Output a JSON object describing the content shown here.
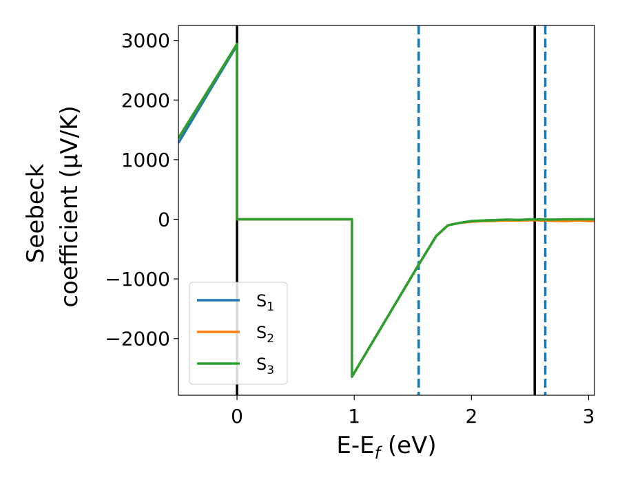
{
  "chart_data": {
    "type": "line",
    "title": "",
    "xlabel": {
      "main": "E-E",
      "sub": "f",
      "unit": " (eV)"
    },
    "ylabel": {
      "line1": "Seebeck",
      "line2": "coefficient  (μV/K)"
    },
    "xlim": [
      -0.5,
      3.05
    ],
    "ylim": [
      -2950,
      3250
    ],
    "xticks": [
      0,
      1,
      2,
      3
    ],
    "xtick_labels": [
      "0",
      "1",
      "2",
      "3"
    ],
    "yticks": [
      3000,
      2000,
      1000,
      0,
      -1000,
      -2000
    ],
    "ytick_labels": [
      "3000",
      "2000",
      "1000",
      "0",
      "−1000",
      "−2000"
    ],
    "grid": false,
    "legend_position": "lower-left",
    "vlines": [
      {
        "x": 0.0,
        "style": "solid",
        "color": "#000000"
      },
      {
        "x": 2.54,
        "style": "solid",
        "color": "#000000"
      },
      {
        "x": 1.55,
        "style": "dashed",
        "color": "#1f77b4"
      },
      {
        "x": 2.63,
        "style": "dashed",
        "color": "#1f77b4"
      }
    ],
    "series": [
      {
        "name": "S",
        "sub": "1",
        "color": "#1f77b4",
        "x": [
          -0.5,
          0.0,
          0.0,
          0.98,
          0.98,
          1.55,
          1.7,
          1.8,
          1.9,
          2.0,
          2.1,
          2.2,
          2.3,
          2.4,
          2.5,
          2.6,
          2.7,
          2.8,
          2.9,
          3.05
        ],
        "y": [
          1280,
          2920,
          0,
          0,
          -2640,
          -760,
          -280,
          -100,
          -60,
          -30,
          -20,
          -15,
          -10,
          -10,
          -5,
          -5,
          -10,
          -10,
          0,
          0
        ]
      },
      {
        "name": "S",
        "sub": "2",
        "color": "#ff7f0e",
        "x": [
          -0.5,
          0.0,
          0.0,
          0.98,
          0.98,
          1.55,
          1.7,
          1.8,
          1.9,
          2.0,
          2.1,
          2.2,
          2.3,
          2.4,
          2.5,
          2.6,
          2.7,
          2.8,
          2.9,
          3.05
        ],
        "y": [
          1360,
          2940,
          0,
          0,
          -2640,
          -760,
          -280,
          -100,
          -60,
          -40,
          -30,
          -25,
          -20,
          -20,
          -15,
          -20,
          -25,
          -30,
          -20,
          -30
        ]
      },
      {
        "name": "S",
        "sub": "3",
        "color": "#2ca02c",
        "x": [
          -0.5,
          0.0,
          0.0,
          0.98,
          0.98,
          1.55,
          1.7,
          1.8,
          1.9,
          2.0,
          2.1,
          2.2,
          2.3,
          2.4,
          2.5,
          2.6,
          2.7,
          2.8,
          2.9,
          3.05
        ],
        "y": [
          1360,
          2940,
          0,
          0,
          -2640,
          -760,
          -280,
          -100,
          -60,
          -30,
          -20,
          -15,
          -5,
          -10,
          0,
          -5,
          -5,
          0,
          0,
          0
        ]
      }
    ]
  }
}
